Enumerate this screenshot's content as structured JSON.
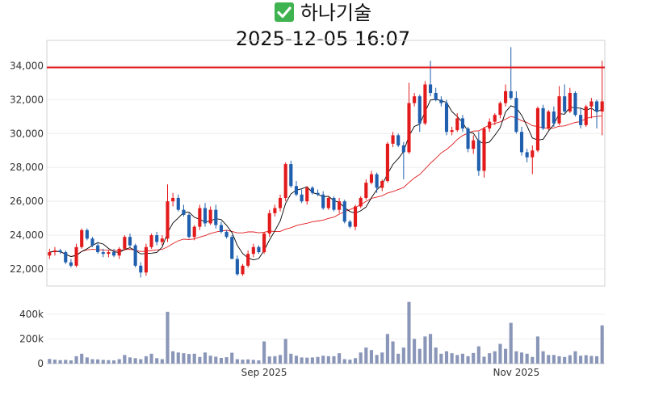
{
  "header": {
    "name": "하나기술",
    "datetime": "2025-12-05 16:07",
    "icon": "check-icon"
  },
  "colors": {
    "up": "#e31a1c",
    "down": "#1f5fae",
    "ma5": "#000000",
    "ma20": "#e31a1c",
    "hline": "#e31a1c",
    "volume": "#8a96b8"
  },
  "chart_data": {
    "type": "candlestick",
    "ylim": [
      21000,
      35500
    ],
    "yticks": [
      "22,000",
      "24,000",
      "26,000",
      "28,000",
      "30,000",
      "32,000",
      "34,000"
    ],
    "hline": 33900,
    "xticks": [
      "Sep 2025",
      "Nov 2025"
    ],
    "volume_ylim": [
      0,
      550000
    ],
    "volume_yticks": [
      "0",
      "200k",
      "400k"
    ],
    "candles": [
      [
        22800,
        23200,
        22600,
        23000
      ],
      [
        23000,
        23300,
        22800,
        23100
      ],
      [
        23100,
        23200,
        22900,
        23000
      ],
      [
        23000,
        23100,
        22300,
        22400
      ],
      [
        22400,
        22600,
        22100,
        22200
      ],
      [
        22200,
        23500,
        22100,
        23300
      ],
      [
        23300,
        24400,
        23200,
        24300
      ],
      [
        24300,
        24400,
        23700,
        23800
      ],
      [
        23800,
        23900,
        23300,
        23400
      ],
      [
        23400,
        23600,
        22900,
        23000
      ],
      [
        23000,
        23200,
        22700,
        22900
      ],
      [
        22900,
        23100,
        22700,
        23000
      ],
      [
        23000,
        23200,
        22700,
        22800
      ],
      [
        22800,
        23300,
        22600,
        23200
      ],
      [
        23200,
        24000,
        23100,
        23900
      ],
      [
        23900,
        24100,
        23300,
        23400
      ],
      [
        23400,
        23500,
        22100,
        22200
      ],
      [
        22200,
        22400,
        21500,
        21800
      ],
      [
        21800,
        23500,
        21600,
        23300
      ],
      [
        23300,
        24100,
        23200,
        24000
      ],
      [
        24000,
        24200,
        23400,
        23600
      ],
      [
        23600,
        24000,
        23400,
        23800
      ],
      [
        23800,
        27000,
        23600,
        26000
      ],
      [
        26000,
        26500,
        25700,
        26200
      ],
      [
        26200,
        26400,
        25400,
        25500
      ],
      [
        25500,
        25800,
        25100,
        25200
      ],
      [
        25200,
        25300,
        23800,
        23900
      ],
      [
        23900,
        24600,
        23700,
        24500
      ],
      [
        24500,
        25800,
        24300,
        25600
      ],
      [
        25600,
        25900,
        24500,
        24700
      ],
      [
        24700,
        25700,
        24600,
        25500
      ],
      [
        25500,
        25800,
        24400,
        24600
      ],
      [
        24600,
        24800,
        24100,
        24200
      ],
      [
        24200,
        24300,
        23800,
        23900
      ],
      [
        23900,
        24000,
        22600,
        22600
      ],
      [
        22600,
        22800,
        21600,
        21700
      ],
      [
        21700,
        22300,
        21600,
        22200
      ],
      [
        22200,
        23100,
        22100,
        22900
      ],
      [
        22900,
        23500,
        22700,
        23300
      ],
      [
        23300,
        23400,
        22900,
        23000
      ],
      [
        23000,
        24200,
        22900,
        24100
      ],
      [
        24100,
        25500,
        23900,
        25300
      ],
      [
        25300,
        25800,
        25100,
        25600
      ],
      [
        25600,
        26400,
        25400,
        26200
      ],
      [
        26200,
        28300,
        26000,
        28200
      ],
      [
        28200,
        28400,
        26800,
        26900
      ],
      [
        26900,
        27200,
        26300,
        26400
      ],
      [
        26400,
        26700,
        25900,
        26000
      ],
      [
        26000,
        26900,
        25800,
        26800
      ],
      [
        26800,
        26900,
        26400,
        26500
      ],
      [
        26500,
        26700,
        26300,
        26400
      ],
      [
        26400,
        26600,
        25500,
        25600
      ],
      [
        25600,
        26300,
        25500,
        26200
      ],
      [
        26200,
        26300,
        25400,
        25500
      ],
      [
        25500,
        26200,
        25300,
        26000
      ],
      [
        26000,
        26100,
        24700,
        24800
      ],
      [
        24800,
        24900,
        24400,
        24500
      ],
      [
        24500,
        25800,
        24300,
        25700
      ],
      [
        25700,
        26300,
        25600,
        26200
      ],
      [
        26200,
        27300,
        26100,
        27100
      ],
      [
        27100,
        27800,
        27000,
        27600
      ],
      [
        27600,
        27700,
        26500,
        26800
      ],
      [
        26800,
        27300,
        26600,
        27200
      ],
      [
        27200,
        29500,
        27100,
        29400
      ],
      [
        29400,
        30100,
        29200,
        29900
      ],
      [
        29900,
        30000,
        29200,
        29300
      ],
      [
        29300,
        29500,
        27300,
        28900
      ],
      [
        28900,
        33000,
        28800,
        31800
      ],
      [
        31800,
        32400,
        31600,
        32200
      ],
      [
        32200,
        32300,
        30100,
        30600
      ],
      [
        30600,
        33100,
        30500,
        32900
      ],
      [
        32900,
        34300,
        32200,
        32400
      ],
      [
        32400,
        32700,
        31900,
        32000
      ],
      [
        32000,
        32200,
        31600,
        31800
      ],
      [
        31800,
        32000,
        29900,
        30100
      ],
      [
        30100,
        30400,
        29900,
        30200
      ],
      [
        30200,
        31200,
        30100,
        30900
      ],
      [
        30900,
        31100,
        30100,
        30300
      ],
      [
        30300,
        30400,
        28900,
        29100
      ],
      [
        29100,
        29900,
        28800,
        29600
      ],
      [
        29600,
        30100,
        27500,
        27800
      ],
      [
        27800,
        30400,
        27400,
        30300
      ],
      [
        30300,
        30900,
        30100,
        30700
      ],
      [
        30700,
        31200,
        30500,
        31100
      ],
      [
        31100,
        31900,
        30900,
        31800
      ],
      [
        31800,
        32900,
        31600,
        32500
      ],
      [
        32500,
        35100,
        32000,
        32100
      ],
      [
        32100,
        32500,
        30000,
        30100
      ],
      [
        30100,
        30400,
        28700,
        28900
      ],
      [
        28900,
        29100,
        28300,
        28600
      ],
      [
        28600,
        29300,
        27600,
        29000
      ],
      [
        29000,
        31600,
        28900,
        31500
      ],
      [
        31500,
        31700,
        30200,
        30300
      ],
      [
        30300,
        31400,
        30200,
        31300
      ],
      [
        31300,
        31600,
        30400,
        30600
      ],
      [
        30600,
        32800,
        30500,
        32200
      ],
      [
        32200,
        32900,
        31200,
        31300
      ],
      [
        31300,
        32700,
        31200,
        32400
      ],
      [
        32400,
        32500,
        31000,
        31100
      ],
      [
        31100,
        31500,
        30300,
        30500
      ],
      [
        30500,
        31700,
        30400,
        31600
      ],
      [
        31600,
        32100,
        30900,
        31900
      ],
      [
        31900,
        32000,
        30300,
        31300
      ],
      [
        31300,
        34300,
        29900,
        31900
      ]
    ],
    "volumes": [
      38000,
      32000,
      28000,
      30000,
      26000,
      60000,
      80000,
      50000,
      36000,
      34000,
      30000,
      28000,
      26000,
      36000,
      70000,
      50000,
      44000,
      36000,
      60000,
      80000,
      44000,
      36000,
      420000,
      100000,
      90000,
      84000,
      78000,
      80000,
      54000,
      90000,
      64000,
      56000,
      46000,
      52000,
      88000,
      36000,
      32000,
      34000,
      30000,
      26000,
      180000,
      58000,
      60000,
      70000,
      200000,
      80000,
      64000,
      50000,
      48000,
      50000,
      54000,
      64000,
      60000,
      60000,
      84000,
      36000,
      32000,
      44000,
      90000,
      130000,
      110000,
      70000,
      90000,
      240000,
      180000,
      80000,
      130000,
      500000,
      200000,
      120000,
      220000,
      240000,
      130000,
      80000,
      100000,
      84000,
      70000,
      80000,
      60000,
      86000,
      140000,
      56000,
      84000,
      100000,
      160000,
      120000,
      330000,
      100000,
      90000,
      80000,
      54000,
      220000,
      100000,
      70000,
      70000,
      60000,
      54000,
      68000,
      100000,
      64000,
      68000,
      62000,
      60000,
      310000
    ]
  }
}
